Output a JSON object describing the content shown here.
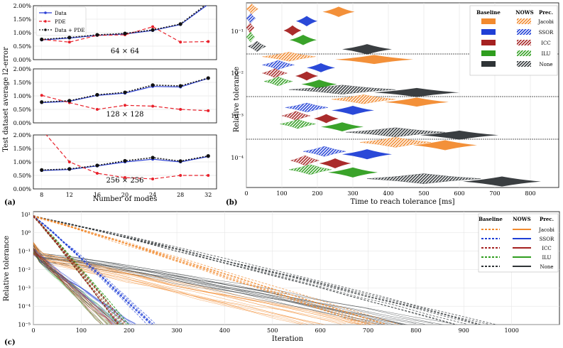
{
  "chart_data": [
    {
      "panel": "(a)",
      "type": "line",
      "ylabel": "Test dataset average l2-error",
      "xlabel": "Number of modes",
      "x": [
        8,
        12,
        16,
        20,
        24,
        28,
        32
      ],
      "xticks": [
        "8",
        "12",
        "16",
        "20",
        "24",
        "28",
        "32"
      ],
      "yticks": [
        "0.00%",
        "0.50%",
        "1.00%",
        "1.50%",
        "2.00%"
      ],
      "legend": [
        "Data",
        "PDE",
        "Data + PDE"
      ],
      "colors": {
        "Data": "#2b3fd6",
        "PDE": "#e8202a",
        "Data + PDE": "#111111"
      },
      "subplots": [
        {
          "title": "64 × 64",
          "ylim": [
            0,
            2
          ],
          "series": [
            {
              "name": "Data",
              "values": [
                0.73,
                0.8,
                0.9,
                0.95,
                1.08,
                1.3,
                2.05
              ]
            },
            {
              "name": "PDE",
              "values": [
                0.75,
                0.65,
                0.9,
                0.92,
                1.22,
                0.65,
                0.67
              ]
            },
            {
              "name": "Data + PDE",
              "values": [
                0.75,
                0.82,
                0.92,
                0.97,
                1.1,
                1.32,
                2.1
              ]
            }
          ]
        },
        {
          "title": "128 × 128",
          "ylim": [
            0,
            2
          ],
          "series": [
            {
              "name": "Data",
              "values": [
                0.75,
                0.8,
                1.02,
                1.1,
                1.35,
                1.33,
                1.65
              ]
            },
            {
              "name": "PDE",
              "values": [
                1.02,
                0.75,
                0.5,
                0.65,
                0.62,
                0.5,
                0.45
              ]
            },
            {
              "name": "Data + PDE",
              "values": [
                0.77,
                0.82,
                1.04,
                1.13,
                1.4,
                1.37,
                1.66
              ]
            }
          ]
        },
        {
          "title": "256 × 256",
          "ylim": [
            0,
            2
          ],
          "series": [
            {
              "name": "Data",
              "values": [
                0.68,
                0.72,
                0.85,
                1.0,
                1.1,
                1.0,
                1.2
              ]
            },
            {
              "name": "PDE",
              "values": [
                2.2,
                1.0,
                0.58,
                0.42,
                0.37,
                0.5,
                0.5
              ]
            },
            {
              "name": "Data + PDE",
              "values": [
                0.7,
                0.74,
                0.87,
                1.04,
                1.16,
                1.03,
                1.22
              ]
            }
          ]
        }
      ]
    },
    {
      "panel": "(b)",
      "type": "violin",
      "xlabel": "Time to reach tolerance [ms]",
      "ylabel": "Relative tolerance",
      "xlim": [
        0,
        880
      ],
      "xticks": [
        "0",
        "100",
        "200",
        "300",
        "400",
        "500",
        "600",
        "700",
        "800"
      ],
      "yticks": [
        "10⁻¹",
        "10⁻²",
        "10⁻³",
        "10⁻⁴"
      ],
      "legend_headers": [
        "Baseline",
        "NOWS",
        "Prec."
      ],
      "preconditioners": [
        "Jacobi",
        "SSOR",
        "ICC",
        "ILU",
        "None"
      ],
      "colors": {
        "Jacobi": "#f28a2e",
        "SSOR": "#1f3fd6",
        "ICC": "#a52121",
        "ILU": "#2f9e1f",
        "None": "#2f3437"
      },
      "groups": [
        {
          "tolerance": "10⁻¹",
          "violins": [
            {
              "prec": "Jacobi",
              "hatched": true,
              "center": 15,
              "halfwidth": 18
            },
            {
              "prec": "Jacobi",
              "hatched": false,
              "center": 260,
              "halfwidth": 45
            },
            {
              "prec": "SSOR",
              "hatched": true,
              "center": 12,
              "halfwidth": 14
            },
            {
              "prec": "SSOR",
              "hatched": false,
              "center": 170,
              "halfwidth": 30
            },
            {
              "prec": "ICC",
              "hatched": true,
              "center": 10,
              "halfwidth": 12
            },
            {
              "prec": "ICC",
              "hatched": false,
              "center": 130,
              "halfwidth": 25
            },
            {
              "prec": "ILU",
              "hatched": true,
              "center": 12,
              "halfwidth": 12
            },
            {
              "prec": "ILU",
              "hatched": false,
              "center": 160,
              "halfwidth": 38
            },
            {
              "prec": "None",
              "hatched": true,
              "center": 30,
              "halfwidth": 25
            },
            {
              "prec": "None",
              "hatched": false,
              "center": 340,
              "halfwidth": 70
            }
          ]
        },
        {
          "tolerance": "10⁻²",
          "violins": [
            {
              "prec": "Jacobi",
              "hatched": true,
              "center": 120,
              "halfwidth": 75
            },
            {
              "prec": "Jacobi",
              "hatched": false,
              "center": 360,
              "halfwidth": 110
            },
            {
              "prec": "SSOR",
              "hatched": true,
              "center": 90,
              "halfwidth": 45
            },
            {
              "prec": "SSOR",
              "hatched": false,
              "center": 210,
              "halfwidth": 40
            },
            {
              "prec": "ICC",
              "hatched": true,
              "center": 80,
              "halfwidth": 35
            },
            {
              "prec": "ICC",
              "hatched": false,
              "center": 170,
              "halfwidth": 32
            },
            {
              "prec": "ILU",
              "hatched": true,
              "center": 90,
              "halfwidth": 40
            },
            {
              "prec": "ILU",
              "hatched": false,
              "center": 205,
              "halfwidth": 50
            },
            {
              "prec": "None",
              "hatched": true,
              "center": 270,
              "halfwidth": 150
            },
            {
              "prec": "None",
              "hatched": false,
              "center": 480,
              "halfwidth": 120
            }
          ]
        },
        {
          "tolerance": "10⁻³",
          "violins": [
            {
              "prec": "Jacobi",
              "hatched": true,
              "center": 330,
              "halfwidth": 90
            },
            {
              "prec": "Jacobi",
              "hatched": false,
              "center": 480,
              "halfwidth": 90
            },
            {
              "prec": "SSOR",
              "hatched": true,
              "center": 170,
              "halfwidth": 60
            },
            {
              "prec": "SSOR",
              "hatched": false,
              "center": 300,
              "halfwidth": 60
            },
            {
              "prec": "ICC",
              "hatched": true,
              "center": 140,
              "halfwidth": 40
            },
            {
              "prec": "ICC",
              "hatched": false,
              "center": 225,
              "halfwidth": 35
            },
            {
              "prec": "ILU",
              "hatched": true,
              "center": 145,
              "halfwidth": 50
            },
            {
              "prec": "ILU",
              "hatched": false,
              "center": 270,
              "halfwidth": 60
            },
            {
              "prec": "None",
              "hatched": true,
              "center": 420,
              "halfwidth": 140
            },
            {
              "prec": "None",
              "hatched": false,
              "center": 600,
              "halfwidth": 110
            }
          ]
        },
        {
          "tolerance": "10⁻⁴",
          "violins": [
            {
              "prec": "Jacobi",
              "hatched": true,
              "center": 420,
              "halfwidth": 100
            },
            {
              "prec": "Jacobi",
              "hatched": false,
              "center": 560,
              "halfwidth": 90
            },
            {
              "prec": "SSOR",
              "hatched": true,
              "center": 220,
              "halfwidth": 60
            },
            {
              "prec": "SSOR",
              "hatched": false,
              "center": 340,
              "halfwidth": 70
            },
            {
              "prec": "ICC",
              "hatched": true,
              "center": 165,
              "halfwidth": 40
            },
            {
              "prec": "ICC",
              "hatched": false,
              "center": 250,
              "halfwidth": 45
            },
            {
              "prec": "ILU",
              "hatched": true,
              "center": 180,
              "halfwidth": 60
            },
            {
              "prec": "ILU",
              "hatched": false,
              "center": 300,
              "halfwidth": 70
            },
            {
              "prec": "None",
              "hatched": true,
              "center": 500,
              "halfwidth": 160
            },
            {
              "prec": "None",
              "hatched": false,
              "center": 720,
              "halfwidth": 110
            }
          ]
        }
      ]
    },
    {
      "panel": "(c)",
      "type": "line",
      "xlabel": "Iteration",
      "ylabel": "Relative tolerance",
      "yscale": "log",
      "xlim": [
        0,
        1100
      ],
      "ylim": [
        1e-05,
        10
      ],
      "xticks": [
        "0",
        "100",
        "200",
        "300",
        "400",
        "500",
        "600",
        "700",
        "800",
        "900",
        "1000"
      ],
      "yticks": [
        "10¹",
        "10⁰",
        "10⁻¹",
        "10⁻²",
        "10⁻³",
        "10⁻⁴",
        "10⁻⁵"
      ],
      "legend_headers": [
        "Baseline",
        "NOWS",
        "Prec."
      ],
      "preconditioners": [
        "Jacobi",
        "SSOR",
        "ICC",
        "ILU",
        "None"
      ],
      "colors": {
        "Jacobi": "#f28a2e",
        "SSOR": "#1f3fd6",
        "ICC": "#a52121",
        "ILU": "#2f9e1f",
        "None": "#2f3437"
      },
      "series": [
        {
          "prec": "Jacobi",
          "style": "baseline",
          "start": 8,
          "end_iter_range": [
            690,
            780
          ]
        },
        {
          "prec": "Jacobi",
          "style": "nows",
          "start": 0.2,
          "end_iter_range": [
            560,
            720
          ]
        },
        {
          "prec": "SSOR",
          "style": "baseline",
          "start": 8,
          "end_iter_range": [
            235,
            262
          ]
        },
        {
          "prec": "SSOR",
          "style": "nows",
          "start": 0.1,
          "end_iter_range": [
            165,
            215
          ]
        },
        {
          "prec": "ICC",
          "style": "baseline",
          "start": 8,
          "end_iter_range": [
            175,
            200
          ]
        },
        {
          "prec": "ICC",
          "style": "nows",
          "start": 0.1,
          "end_iter_range": [
            140,
            180
          ]
        },
        {
          "prec": "ILU",
          "style": "baseline",
          "start": 8,
          "end_iter_range": [
            175,
            200
          ]
        },
        {
          "prec": "ILU",
          "style": "nows",
          "start": 0.1,
          "end_iter_range": [
            140,
            185
          ]
        },
        {
          "prec": "None",
          "style": "baseline",
          "start": 8,
          "end_iter_range": [
            880,
            1000
          ]
        },
        {
          "prec": "None",
          "style": "nows",
          "start": 0.2,
          "end_iter_range": [
            700,
            880
          ]
        }
      ]
    }
  ]
}
